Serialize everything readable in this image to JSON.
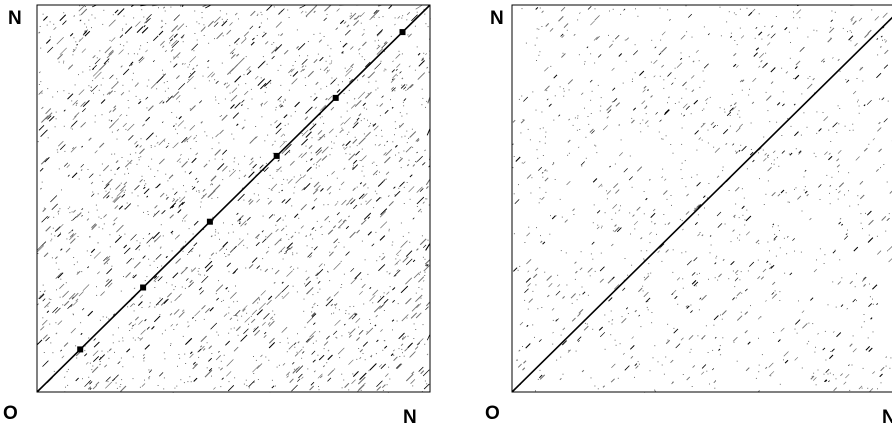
{
  "plots": [
    {
      "corner_label": "N",
      "origin_label": "O",
      "end_label": "N",
      "pattern": "dense",
      "seed": 17
    },
    {
      "corner_label": "N",
      "origin_label": "O",
      "end_label": "N",
      "pattern": "sparse",
      "seed": 91
    }
  ],
  "colors": {
    "ink": "#000000",
    "grey": "#6e6e6e",
    "background": "#ffffff"
  }
}
